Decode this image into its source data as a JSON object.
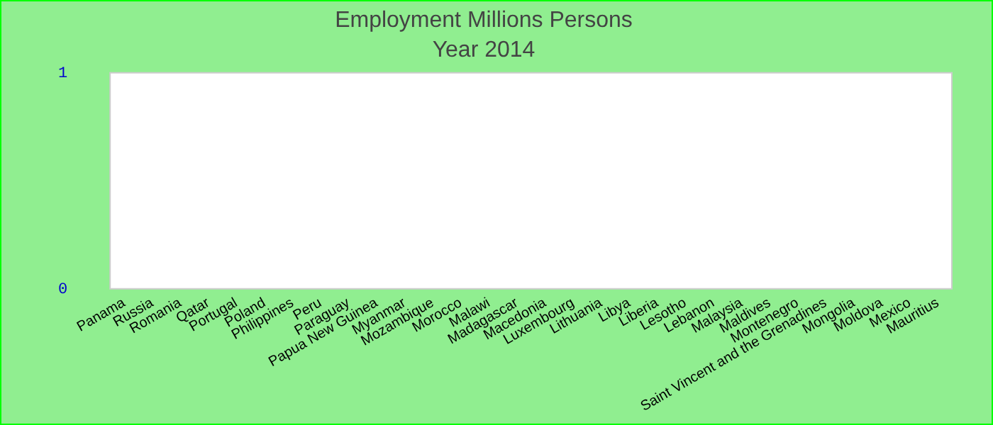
{
  "chart_data": {
    "type": "bar",
    "title": "Employment Millions Persons",
    "subtitle": "Year 2014",
    "categories": [
      "Panama",
      "Russia",
      "Romania",
      "Qatar",
      "Portugal",
      "Poland",
      "Philippines",
      "Peru",
      "Paraguay",
      "Papua New Guinea",
      "Myanmar",
      "Mozambique",
      "Morocco",
      "Malawi",
      "Madagascar",
      "Macedonia",
      "Luxembourg",
      "Lithuania",
      "Libya",
      "Liberia",
      "Lesotho",
      "Lebanon",
      "Malaysia",
      "Maldives",
      "Montenegro",
      "Saint Vincent and the Grenadines",
      "Mongolia",
      "Moldova",
      "Mexico",
      "Mauritius"
    ],
    "values": [
      0,
      0,
      0,
      0,
      0,
      0,
      0,
      0,
      0,
      0,
      0,
      0,
      0,
      0,
      0,
      0,
      0,
      0,
      0,
      0,
      0,
      0,
      0,
      0,
      0,
      0,
      0,
      0,
      0,
      0
    ],
    "ylim": [
      0,
      1
    ],
    "yticks": [
      0,
      1
    ],
    "grid": false,
    "legend": false
  }
}
